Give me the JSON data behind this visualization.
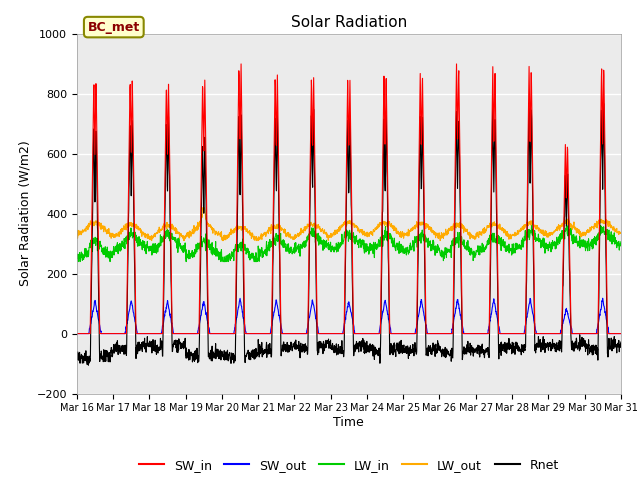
{
  "title": "Solar Radiation",
  "xlabel": "Time",
  "ylabel": "Solar Radiation (W/m2)",
  "ylim": [
    -200,
    1000
  ],
  "background_color": "#ebebeb",
  "label_text": "BC_met",
  "x_tick_labels": [
    "Mar 16",
    "Mar 17",
    "Mar 18",
    "Mar 19",
    "Mar 20",
    "Mar 21",
    "Mar 22",
    "Mar 23",
    "Mar 24",
    "Mar 25",
    "Mar 26",
    "Mar 27",
    "Mar 28",
    "Mar 29",
    "Mar 30",
    "Mar 31"
  ],
  "series_colors": {
    "SW_in": "#ff0000",
    "SW_out": "#0000ff",
    "LW_in": "#00cc00",
    "LW_out": "#ffaa00",
    "Rnet": "#000000"
  },
  "num_days": 15,
  "SW_in_peaks": [
    850,
    855,
    840,
    850,
    900,
    865,
    860,
    855,
    865,
    870,
    900,
    895,
    900,
    640,
    900
  ],
  "grid_color": "#ffffff",
  "yticks": [
    -200,
    0,
    200,
    400,
    600,
    800,
    1000
  ]
}
